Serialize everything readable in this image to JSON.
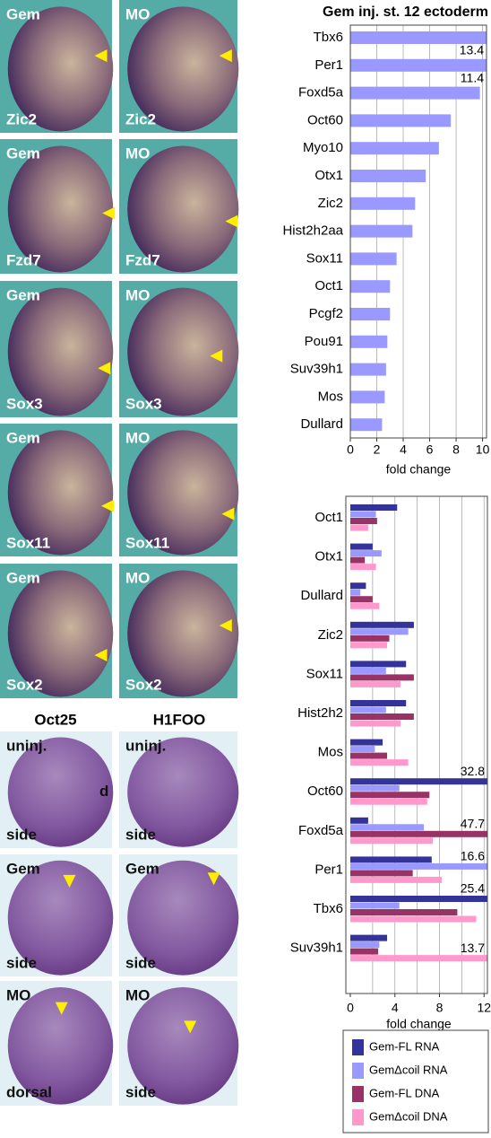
{
  "panels": [
    {
      "top": "Gem",
      "bottom": "Zic2"
    },
    {
      "top": "MO",
      "bottom": "Zic2"
    },
    {
      "top": "Gem",
      "bottom": "Fzd7"
    },
    {
      "top": "MO",
      "bottom": "Fzd7"
    },
    {
      "top": "Gem",
      "bottom": "Sox3"
    },
    {
      "top": "MO",
      "bottom": "Sox3"
    },
    {
      "top": "Gem",
      "bottom": "Sox11"
    },
    {
      "top": "MO",
      "bottom": "Sox11"
    },
    {
      "top": "Gem",
      "bottom": "Sox2"
    },
    {
      "top": "MO",
      "bottom": "Sox2"
    },
    {
      "top": "uninj.",
      "bottom": "side",
      "note": "d"
    },
    {
      "top": "uninj.",
      "bottom": "side"
    },
    {
      "top": "Gem",
      "bottom": "side"
    },
    {
      "top": "Gem",
      "bottom": "side"
    },
    {
      "top": "MO",
      "bottom": "dorsal"
    },
    {
      "top": "MO",
      "bottom": "side"
    }
  ],
  "column_headers": [
    "Oct25",
    "H1FOO"
  ],
  "chart_data": [
    {
      "type": "bar",
      "orientation": "horizontal",
      "title": "Gem inj. st. 12 ectoderm",
      "categories": [
        "Tbx6",
        "Per1",
        "Foxd5a",
        "Oct60",
        "Myo10",
        "Otx1",
        "Zic2",
        "Hist2h2aa",
        "Sox11",
        "Oct1",
        "Pcgf2",
        "Pou91",
        "Suv39h1",
        "Mos",
        "Dullard"
      ],
      "values": [
        13.4,
        11.4,
        9.8,
        7.6,
        6.7,
        5.7,
        4.9,
        4.7,
        3.5,
        3.0,
        3.0,
        2.8,
        2.7,
        2.6,
        2.4
      ],
      "value_labels": [
        "13.4",
        "11.4",
        null,
        null,
        null,
        null,
        null,
        null,
        null,
        null,
        null,
        null,
        null,
        null,
        null
      ],
      "value_label_position": "below",
      "color": "#9999ff",
      "xlabel": "fold change",
      "xlim": [
        0,
        10.3
      ],
      "xticks": [
        0,
        2,
        4,
        6,
        8,
        10
      ],
      "grid": true
    },
    {
      "type": "grouped_bar",
      "orientation": "horizontal",
      "categories": [
        "Oct1",
        "Otx1",
        "Dullard",
        "Zic2",
        "Sox11",
        "Hist2h2",
        "Mos",
        "Oct60",
        "Foxd5a",
        "Per1",
        "Tbx6",
        "Suv39h1"
      ],
      "series": [
        {
          "name": "Gem-FL RNA",
          "color": "#333399",
          "values": [
            4.2,
            2.0,
            1.4,
            5.7,
            5.0,
            5.0,
            2.9,
            32.8,
            1.6,
            7.3,
            25.4,
            3.3
          ],
          "value_labels": [
            null,
            null,
            null,
            null,
            null,
            null,
            null,
            "32.8",
            null,
            null,
            "25.4",
            null
          ]
        },
        {
          "name": "GemΔcoil RNA",
          "color": "#9999ff",
          "values": [
            2.3,
            2.8,
            0.9,
            5.2,
            3.2,
            3.2,
            2.2,
            4.4,
            6.6,
            16.6,
            4.4,
            2.6
          ],
          "value_labels": [
            null,
            null,
            null,
            null,
            null,
            null,
            null,
            null,
            null,
            "16.6",
            null,
            null
          ]
        },
        {
          "name": "Gem-FL DNA",
          "color": "#993366",
          "values": [
            2.4,
            1.3,
            2.0,
            3.5,
            5.7,
            5.7,
            3.3,
            7.1,
            47.7,
            5.6,
            9.6,
            2.5
          ],
          "value_labels": [
            null,
            null,
            null,
            null,
            null,
            null,
            null,
            null,
            "47.7",
            null,
            null,
            null
          ]
        },
        {
          "name": "GemΔcoil DNA",
          "color": "#ff99cc",
          "values": [
            1.6,
            2.3,
            2.6,
            3.3,
            4.5,
            4.5,
            5.2,
            6.9,
            7.4,
            8.2,
            11.3,
            13.7
          ],
          "value_labels": [
            null,
            null,
            null,
            null,
            null,
            null,
            null,
            null,
            null,
            null,
            null,
            "13.7"
          ]
        }
      ],
      "value_label_position": "above",
      "xlabel": "fold change",
      "xlim": [
        0,
        12.3
      ],
      "xticks": [
        0,
        4,
        8,
        12
      ],
      "xgrid": [
        2,
        4,
        6,
        8,
        10,
        12
      ],
      "grid": true,
      "legend": "bottom"
    }
  ]
}
